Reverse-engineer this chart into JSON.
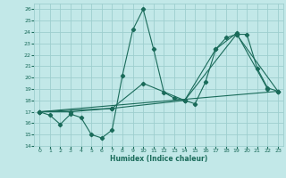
{
  "xlabel": "Humidex (Indice chaleur)",
  "bg_color": "#c2e8e8",
  "grid_color": "#9ecece",
  "line_color": "#1a6b5a",
  "xlim": [
    -0.5,
    23.5
  ],
  "ylim": [
    14,
    26.5
  ],
  "yticks": [
    14,
    15,
    16,
    17,
    18,
    19,
    20,
    21,
    22,
    23,
    24,
    25,
    26
  ],
  "xticks": [
    0,
    1,
    2,
    3,
    4,
    5,
    6,
    7,
    8,
    9,
    10,
    11,
    12,
    13,
    14,
    15,
    16,
    17,
    18,
    19,
    20,
    21,
    22,
    23
  ],
  "line1_x": [
    0,
    1,
    2,
    3,
    4,
    5,
    6,
    7,
    8,
    9,
    10,
    11,
    12,
    13,
    14,
    15,
    16,
    17,
    18,
    19,
    20,
    21,
    22,
    23
  ],
  "line1_y": [
    17.0,
    16.7,
    15.9,
    16.8,
    16.5,
    15.0,
    14.7,
    15.4,
    20.2,
    24.2,
    26.0,
    22.5,
    18.7,
    18.2,
    18.0,
    17.7,
    19.6,
    22.5,
    23.5,
    23.8,
    23.8,
    20.8,
    19.1,
    18.8
  ],
  "line2_x": [
    0,
    3,
    7,
    10,
    14,
    17,
    19,
    22
  ],
  "line2_y": [
    17.0,
    17.0,
    17.3,
    19.5,
    18.0,
    22.5,
    23.9,
    19.0
  ],
  "line3_x": [
    0,
    23
  ],
  "line3_y": [
    17.0,
    18.8
  ],
  "line4_x": [
    0,
    7,
    14,
    19,
    23
  ],
  "line4_y": [
    17.0,
    17.3,
    18.0,
    23.8,
    18.8
  ]
}
